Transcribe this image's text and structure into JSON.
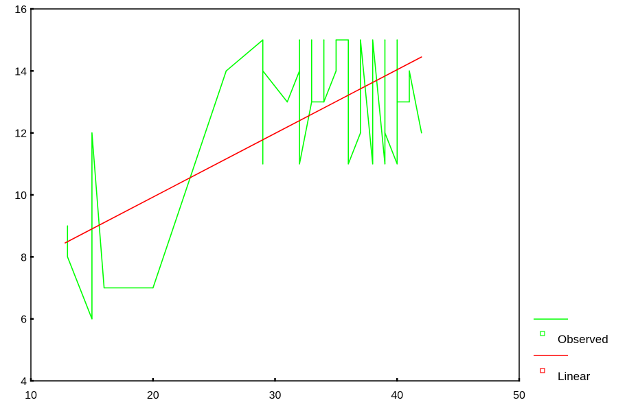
{
  "chart_data": {
    "type": "line",
    "title": "",
    "xlabel": "",
    "ylabel": "",
    "xlim": [
      10,
      50
    ],
    "ylim": [
      4,
      16
    ],
    "xticks": [
      10,
      20,
      30,
      40,
      50
    ],
    "yticks": [
      4,
      6,
      8,
      10,
      12,
      14,
      16
    ],
    "grid": false,
    "legend_position": "bottom-right",
    "series": [
      {
        "name": "Observed",
        "color": "#00ff00",
        "points": [
          [
            13,
            9
          ],
          [
            13,
            8
          ],
          [
            15,
            6
          ],
          [
            15,
            12
          ],
          [
            16,
            7
          ],
          [
            20,
            7
          ],
          [
            26,
            14
          ],
          [
            29,
            15
          ],
          [
            29,
            11
          ],
          [
            29,
            14
          ],
          [
            31,
            13
          ],
          [
            32,
            14
          ],
          [
            32,
            15
          ],
          [
            32,
            11
          ],
          [
            33,
            13
          ],
          [
            33,
            15
          ],
          [
            33,
            13
          ],
          [
            34,
            13
          ],
          [
            34,
            15
          ],
          [
            34,
            13
          ],
          [
            35,
            14
          ],
          [
            35,
            15
          ],
          [
            36,
            15
          ],
          [
            36,
            11
          ],
          [
            37,
            12
          ],
          [
            37,
            15
          ],
          [
            38,
            11
          ],
          [
            38,
            15
          ],
          [
            39,
            11
          ],
          [
            39,
            15
          ],
          [
            39,
            12
          ],
          [
            40,
            11
          ],
          [
            40,
            15
          ],
          [
            40,
            13
          ],
          [
            41,
            13
          ],
          [
            41,
            14
          ],
          [
            42,
            12
          ]
        ]
      },
      {
        "name": "Linear",
        "color": "#ff0000",
        "points": [
          [
            12.8,
            8.45
          ],
          [
            42,
            14.45
          ]
        ]
      }
    ]
  }
}
